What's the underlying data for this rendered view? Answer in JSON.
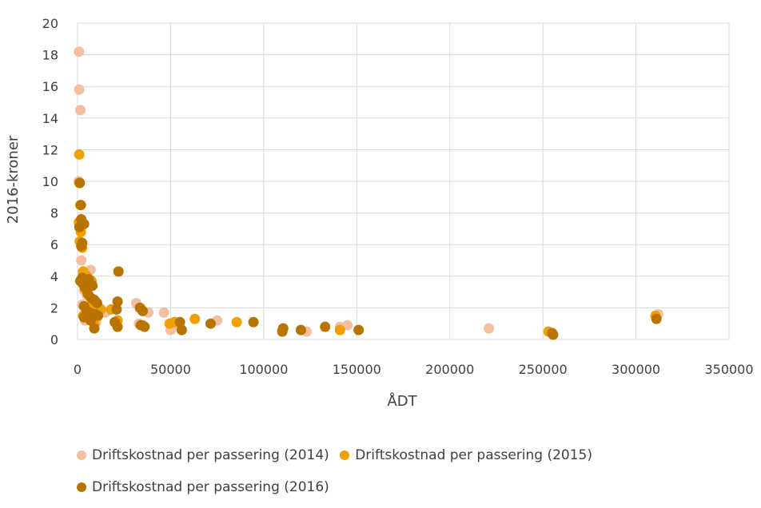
{
  "chart_data": {
    "type": "scatter",
    "title": "",
    "xlabel": "ÅDT",
    "ylabel": "2016-kroner",
    "xlim": [
      0,
      350000
    ],
    "ylim": [
      0,
      20
    ],
    "x_ticks": [
      0,
      50000,
      100000,
      150000,
      200000,
      250000,
      300000,
      350000
    ],
    "y_ticks": [
      0,
      2,
      4,
      6,
      8,
      10,
      12,
      14,
      16,
      18,
      20
    ],
    "grid": true,
    "legend_position": "bottom",
    "series": [
      {
        "name": "Driftskostnad per passering (2014)",
        "color": "#f4bfa0",
        "points": [
          [
            800,
            18.2
          ],
          [
            900,
            15.8
          ],
          [
            1500,
            14.5
          ],
          [
            600,
            10.0
          ],
          [
            1200,
            7.2
          ],
          [
            2000,
            5.0
          ],
          [
            3000,
            4.2
          ],
          [
            6000,
            4.3
          ],
          [
            7000,
            4.4
          ],
          [
            3500,
            3.1
          ],
          [
            5000,
            2.8
          ],
          [
            8000,
            2.5
          ],
          [
            9000,
            2.0
          ],
          [
            12000,
            1.8
          ],
          [
            15000,
            1.7
          ],
          [
            31500,
            2.3
          ],
          [
            34500,
            1.9
          ],
          [
            38000,
            1.7
          ],
          [
            46500,
            1.7
          ],
          [
            33000,
            1.0
          ],
          [
            50000,
            0.6
          ],
          [
            52000,
            0.9
          ],
          [
            75000,
            1.2
          ],
          [
            110000,
            0.6
          ],
          [
            123000,
            0.5
          ],
          [
            141000,
            0.8
          ],
          [
            145000,
            0.9
          ],
          [
            221000,
            0.7
          ],
          [
            312000,
            1.6
          ],
          [
            4000,
            1.2
          ],
          [
            10000,
            1.1
          ],
          [
            2500,
            2.2
          ]
        ]
      },
      {
        "name": "Driftskostnad per passering (2015)",
        "color": "#f0a000",
        "points": [
          [
            900,
            11.7
          ],
          [
            1000,
            9.9
          ],
          [
            1500,
            8.5
          ],
          [
            700,
            7.4
          ],
          [
            1800,
            6.8
          ],
          [
            1200,
            6.2
          ],
          [
            2500,
            5.8
          ],
          [
            3000,
            4.3
          ],
          [
            5000,
            4.0
          ],
          [
            7500,
            3.7
          ],
          [
            4000,
            3.2
          ],
          [
            6500,
            2.7
          ],
          [
            8000,
            2.3
          ],
          [
            10000,
            2.0
          ],
          [
            12500,
            1.9
          ],
          [
            18000,
            1.9
          ],
          [
            21500,
            1.2
          ],
          [
            35000,
            0.9
          ],
          [
            49500,
            1.0
          ],
          [
            52000,
            1.1
          ],
          [
            63000,
            1.3
          ],
          [
            85500,
            1.1
          ],
          [
            141000,
            0.6
          ],
          [
            253000,
            0.5
          ],
          [
            310500,
            1.5
          ],
          [
            3000,
            1.5
          ],
          [
            9000,
            1.0
          ]
        ]
      },
      {
        "name": "Driftskostnad per passering (2016)",
        "color": "#b87300",
        "points": [
          [
            1200,
            9.9
          ],
          [
            1800,
            8.5
          ],
          [
            2000,
            7.6
          ],
          [
            3500,
            7.3
          ],
          [
            1000,
            7.1
          ],
          [
            2500,
            6.1
          ],
          [
            2000,
            5.9
          ],
          [
            1500,
            3.7
          ],
          [
            2500,
            3.9
          ],
          [
            3000,
            3.5
          ],
          [
            4000,
            3.3
          ],
          [
            4500,
            3.7
          ],
          [
            6000,
            3.8
          ],
          [
            7000,
            3.5
          ],
          [
            8000,
            3.4
          ],
          [
            5500,
            2.9
          ],
          [
            7500,
            2.6
          ],
          [
            9000,
            2.5
          ],
          [
            10500,
            2.3
          ],
          [
            3500,
            2.1
          ],
          [
            5000,
            1.8
          ],
          [
            6500,
            1.7
          ],
          [
            9500,
            1.6
          ],
          [
            11000,
            1.5
          ],
          [
            3500,
            1.4
          ],
          [
            4500,
            1.5
          ],
          [
            7000,
            1.2
          ],
          [
            9000,
            0.7
          ],
          [
            22000,
            4.3
          ],
          [
            21500,
            2.4
          ],
          [
            21000,
            1.9
          ],
          [
            20000,
            1.1
          ],
          [
            21500,
            0.8
          ],
          [
            33500,
            2.0
          ],
          [
            35000,
            1.8
          ],
          [
            34000,
            0.9
          ],
          [
            36000,
            0.8
          ],
          [
            55000,
            1.1
          ],
          [
            56000,
            0.6
          ],
          [
            71500,
            1.0
          ],
          [
            94500,
            1.1
          ],
          [
            110000,
            0.5
          ],
          [
            110500,
            0.7
          ],
          [
            120000,
            0.6
          ],
          [
            133000,
            0.8
          ],
          [
            151000,
            0.6
          ],
          [
            255000,
            0.4
          ],
          [
            255500,
            0.3
          ],
          [
            311000,
            1.3
          ]
        ]
      }
    ]
  }
}
